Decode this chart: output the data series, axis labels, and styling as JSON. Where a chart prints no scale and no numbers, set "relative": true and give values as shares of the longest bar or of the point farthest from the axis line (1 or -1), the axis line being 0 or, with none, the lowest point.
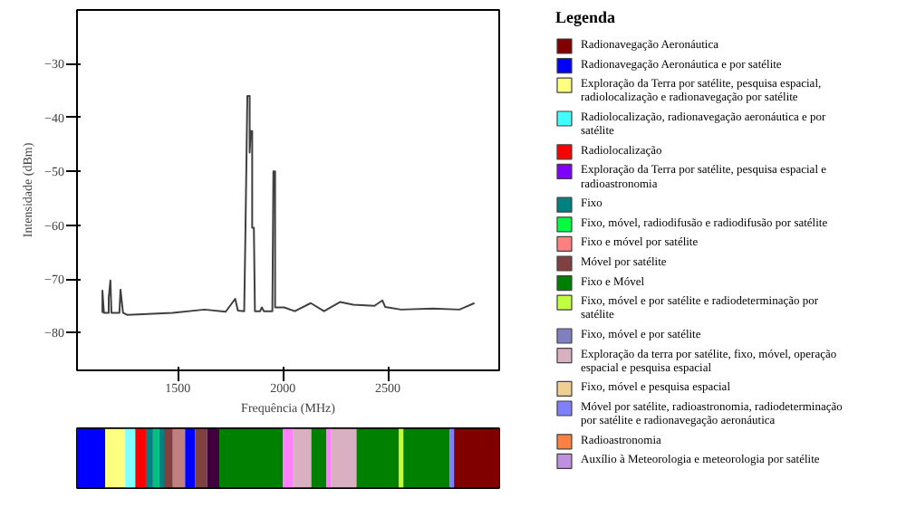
{
  "chart_data": [
    {
      "type": "line",
      "xlabel": "Frequência (MHz)",
      "ylabel": "Intensidade (dBm)",
      "xlim": [
        1020,
        3030
      ],
      "ylim": [
        -87,
        -20
      ],
      "xticks": [
        1500,
        2000,
        2500
      ],
      "yticks": [
        -30,
        -40,
        -50,
        -60,
        -70,
        -80
      ],
      "grid": false,
      "marker": "none",
      "line_style": "solid",
      "series": [
        {
          "color": "#404040",
          "x": [
            1141,
            1141,
            1148,
            1171,
            1171,
            1179,
            1184,
            1222,
            1227,
            1239,
            1260,
            1475,
            1627,
            1728,
            1773,
            1786,
            1816,
            1821,
            1831,
            1842,
            1842,
            1847,
            1854,
            1854,
            1862,
            1867,
            1892,
            1900,
            1910,
            1950,
            1955,
            1963,
            1963,
            2006,
            2057,
            2133,
            2196,
            2272,
            2335,
            2436,
            2474,
            2487,
            2563,
            2714,
            2841,
            2912
          ],
          "values": [
            -76.3,
            -72.2,
            -76.3,
            -76.3,
            -73.5,
            -70.3,
            -76.3,
            -76.3,
            -72,
            -76.3,
            -76.7,
            -76.3,
            -75.7,
            -76.1,
            -73.7,
            -75.9,
            -76,
            -63.5,
            -36,
            -36,
            -46.5,
            -42.5,
            -42.5,
            -60.5,
            -60.5,
            -76,
            -76,
            -75.3,
            -76,
            -76,
            -50,
            -50,
            -75.3,
            -75.3,
            -76,
            -74.5,
            -76,
            -74.3,
            -74.8,
            -75,
            -74,
            -75.2,
            -75.7,
            -75.5,
            -75.7,
            -74.5
          ]
        }
      ]
    },
    {
      "type": "bar",
      "orientation": "horizontal",
      "stacked": true,
      "relative": true,
      "categories": [
        null
      ],
      "series": [
        {
          "color": "#0000ff",
          "values": [
            0.067
          ]
        },
        {
          "color": "#ffff80",
          "values": [
            0.047
          ]
        },
        {
          "color": "#80ffff",
          "values": [
            0.024
          ]
        },
        {
          "color": "#ff0000",
          "values": [
            0.025
          ]
        },
        {
          "color": "#008080",
          "values": [
            0.017
          ]
        },
        {
          "color": "#00c080",
          "values": [
            0.015
          ]
        },
        {
          "color": "#008080",
          "values": [
            0.011
          ]
        },
        {
          "color": "#804040",
          "values": [
            0.021
          ]
        },
        {
          "color": "#c08080",
          "values": [
            0.029
          ]
        },
        {
          "color": "#0000ff",
          "values": [
            0.024
          ]
        },
        {
          "color": "#804040",
          "values": [
            0.028
          ]
        },
        {
          "color": "#400040",
          "values": [
            0.029
          ]
        },
        {
          "color": "#008000",
          "values": [
            0.151
          ]
        },
        {
          "color": "#ff80ff",
          "values": [
            0.024
          ]
        },
        {
          "color": "#d8b0c0",
          "values": [
            0.043
          ]
        },
        {
          "color": "#008000",
          "values": [
            0.036
          ]
        },
        {
          "color": "#ff80ff",
          "values": [
            0.011
          ]
        },
        {
          "color": "#d8b0c0",
          "values": [
            0.06
          ]
        },
        {
          "color": "#008000",
          "values": [
            0.1
          ]
        },
        {
          "color": "#c0ff40",
          "values": [
            0.011
          ]
        },
        {
          "color": "#008000",
          "values": [
            0.11
          ]
        },
        {
          "color": "#8080ff",
          "values": [
            0.01
          ]
        },
        {
          "color": "#800000",
          "values": [
            0.107
          ]
        }
      ]
    },
    {
      "type": "other",
      "legend_title": "Legenda",
      "categories": [
        "Radionavegação Aeronáutica",
        "Radionavegação Aeronáutica e por satélite",
        "Exploração da Terra por satélite, pesquisa espacial, radiolocalização e radionavegação por satélite",
        "Radiolocalização, radionavegação aeronáutica e por satélite",
        "Radiolocalização",
        "Exploração da Terra por satélite, pesquisa espacial e radioastronomia",
        "Fixo",
        "Fixo, móvel, radiodifusão e radiodifusão por satélite",
        "Fixo e móvel por satélite",
        "Móvel por satélite",
        "Fixo e Móvel",
        "Fixo, móvel e por satélite e radiodeterminação por satélite",
        "Fixo, móvel e por satélite",
        "Exploração da terra por satélite, fixo, móvel, operação espacial e pesquisa espacial",
        "Fixo, móvel e pesquisa espacial",
        "Móvel por satélite, radioastronomia, radiodeterminação por satélite e radionavegação aeronáutica",
        "Radioastronomia",
        "Auxílio à Meteorologia e meteorologia por satélite"
      ],
      "colors": [
        "#800000",
        "#0000ff",
        "#ffff80",
        "#40ffff",
        "#ff0000",
        "#8000ff",
        "#008080",
        "#00ff40",
        "#ff8080",
        "#804040",
        "#008000",
        "#c0ff40",
        "#8080c0",
        "#d8b0c0",
        "#f0d090",
        "#8080ff",
        "#ff8040",
        "#c090e0"
      ]
    }
  ]
}
